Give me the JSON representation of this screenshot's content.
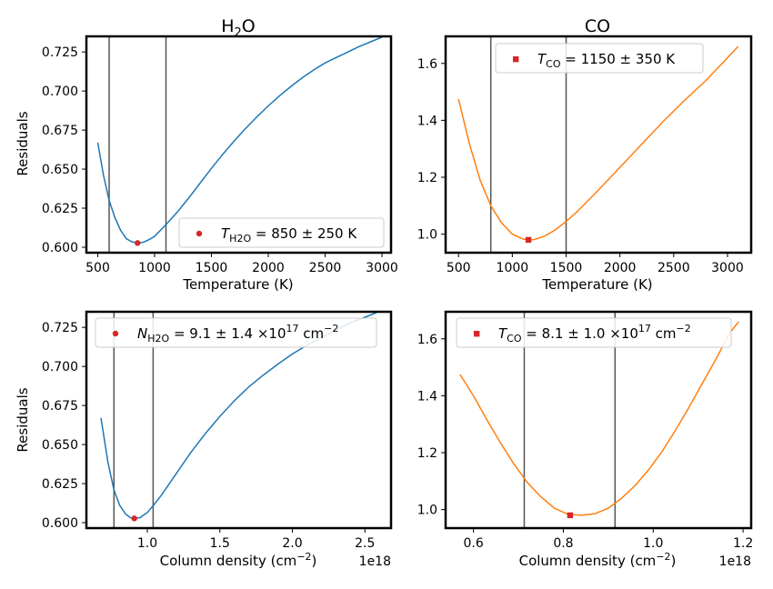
{
  "colors": {
    "blue": "#1f77b4",
    "orange": "#ff7f0e",
    "red": "#d62728",
    "vline": "#555555"
  },
  "chart_data": [
    {
      "id": "h2o-temp",
      "type": "line",
      "title_main": "H",
      "title_sub": "2",
      "title_tail": "O",
      "xlabel": "Temperature (K)",
      "ylabel": "Residuals",
      "xlim": [
        400,
        3080
      ],
      "ylim": [
        0.5965,
        0.735
      ],
      "xticks": [
        500,
        1000,
        1500,
        2000,
        2500,
        3000
      ],
      "xtick_labels": [
        "500",
        "1000",
        "1500",
        "2000",
        "2500",
        "3000"
      ],
      "yticks": [
        0.6,
        0.625,
        0.65,
        0.675,
        0.7,
        0.725
      ],
      "ytick_labels": [
        "0.600",
        "0.625",
        "0.650",
        "0.675",
        "0.700",
        "0.725"
      ],
      "series_color": "blue",
      "x": [
        500,
        550,
        600,
        650,
        700,
        750,
        800,
        850,
        900,
        950,
        1000,
        1100,
        1200,
        1300,
        1400,
        1500,
        1600,
        1700,
        1800,
        1900,
        2000,
        2100,
        2200,
        2300,
        2400,
        2500,
        2600,
        2700,
        2800,
        2900,
        3000
      ],
      "y": [
        0.667,
        0.646,
        0.63,
        0.619,
        0.611,
        0.6055,
        0.6035,
        0.6027,
        0.6032,
        0.6048,
        0.607,
        0.6145,
        0.6225,
        0.6315,
        0.641,
        0.6505,
        0.6595,
        0.668,
        0.676,
        0.6835,
        0.6905,
        0.697,
        0.703,
        0.7085,
        0.7135,
        0.718,
        0.7215,
        0.725,
        0.7285,
        0.7315,
        0.7345
      ],
      "vlines": [
        600,
        1100
      ],
      "marker": {
        "x": 850,
        "y": 0.6027,
        "shape": "circle"
      },
      "legend": {
        "position": "lower-right",
        "var": "T",
        "sub": "H2O",
        "text": " = 850 ± 250 K"
      }
    },
    {
      "id": "co-temp",
      "type": "line",
      "title_main": "CO",
      "title_sub": "",
      "title_tail": "",
      "xlabel": "Temperature (K)",
      "ylabel": "",
      "xlim": [
        380,
        3220
      ],
      "ylim": [
        0.935,
        1.695
      ],
      "xticks": [
        500,
        1000,
        1500,
        2000,
        2500,
        3000
      ],
      "xtick_labels": [
        "500",
        "1000",
        "1500",
        "2000",
        "2500",
        "3000"
      ],
      "yticks": [
        1.0,
        1.2,
        1.4,
        1.6
      ],
      "ytick_labels": [
        "1.0",
        "1.2",
        "1.4",
        "1.6"
      ],
      "series_color": "orange",
      "x": [
        500,
        600,
        700,
        800,
        900,
        1000,
        1100,
        1150,
        1200,
        1300,
        1400,
        1500,
        1600,
        1800,
        2000,
        2200,
        2400,
        2600,
        2800,
        3000,
        3100
      ],
      "y": [
        1.475,
        1.32,
        1.19,
        1.1,
        1.04,
        1.0,
        0.983,
        0.98,
        0.981,
        0.993,
        1.015,
        1.045,
        1.078,
        1.155,
        1.235,
        1.315,
        1.395,
        1.47,
        1.54,
        1.62,
        1.66
      ],
      "vlines": [
        800,
        1500
      ],
      "marker": {
        "x": 1150,
        "y": 0.98,
        "shape": "square"
      },
      "legend": {
        "position": "upper-center",
        "var": "T",
        "sub": "CO",
        "text": " = 1150 ± 350 K"
      }
    },
    {
      "id": "h2o-column",
      "type": "line",
      "title_main": "",
      "title_sub": "",
      "title_tail": "",
      "xlabel": "Column density (cm",
      "xlabel_sup": "−2",
      "xlabel_tail": ")",
      "ylabel": "Residuals",
      "offset_text": "1e18",
      "xlim": [
        0.58,
        2.68
      ],
      "ylim": [
        0.5965,
        0.735
      ],
      "xticks": [
        1.0,
        1.5,
        2.0,
        2.5
      ],
      "xtick_labels": [
        "1.0",
        "1.5",
        "2.0",
        "2.5"
      ],
      "yticks": [
        0.6,
        0.625,
        0.65,
        0.675,
        0.7,
        0.725
      ],
      "ytick_labels": [
        "0.600",
        "0.625",
        "0.650",
        "0.675",
        "0.700",
        "0.725"
      ],
      "series_color": "blue",
      "x": [
        0.68,
        0.73,
        0.77,
        0.81,
        0.85,
        0.88,
        0.91,
        0.95,
        1.0,
        1.05,
        1.1,
        1.2,
        1.3,
        1.4,
        1.5,
        1.6,
        1.7,
        1.8,
        1.9,
        2.0,
        2.1,
        2.2,
        2.3,
        2.4,
        2.5,
        2.58
      ],
      "y": [
        0.667,
        0.638,
        0.621,
        0.611,
        0.6055,
        0.6033,
        0.6027,
        0.6032,
        0.6065,
        0.612,
        0.618,
        0.6315,
        0.645,
        0.657,
        0.668,
        0.678,
        0.687,
        0.6945,
        0.7015,
        0.708,
        0.7135,
        0.7185,
        0.7235,
        0.728,
        0.7315,
        0.7345
      ],
      "vlines": [
        0.77,
        1.04
      ],
      "marker": {
        "x": 0.91,
        "y": 0.6027,
        "shape": "circle"
      },
      "legend": {
        "position": "upper-right",
        "var": "N",
        "sub": "H2O",
        "text": " = 9.1 ± 1.4 ×10",
        "sup": "17",
        "tail": " cm",
        "tail_sup": "−2"
      }
    },
    {
      "id": "co-column",
      "type": "line",
      "title_main": "",
      "title_sub": "",
      "title_tail": "",
      "xlabel": "Column density (cm",
      "xlabel_sup": "−2",
      "xlabel_tail": ")",
      "ylabel": "",
      "offset_text": "1e18",
      "xlim": [
        0.538,
        1.218
      ],
      "ylim": [
        0.935,
        1.695
      ],
      "xticks": [
        0.6,
        0.8,
        1.0,
        1.2
      ],
      "xtick_labels": [
        "0.6",
        "0.8",
        "1.0",
        "1.2"
      ],
      "yticks": [
        1.0,
        1.2,
        1.4,
        1.6
      ],
      "ytick_labels": [
        "1.0",
        "1.2",
        "1.4",
        "1.6"
      ],
      "series_color": "orange",
      "x": [
        0.57,
        0.6,
        0.63,
        0.66,
        0.69,
        0.72,
        0.75,
        0.78,
        0.81,
        0.84,
        0.87,
        0.9,
        0.93,
        0.96,
        0.99,
        1.02,
        1.05,
        1.08,
        1.11,
        1.14,
        1.17,
        1.19
      ],
      "y": [
        1.475,
        1.4,
        1.315,
        1.235,
        1.16,
        1.095,
        1.045,
        1.005,
        0.984,
        0.98,
        0.985,
        1.005,
        1.04,
        1.085,
        1.14,
        1.205,
        1.28,
        1.36,
        1.445,
        1.53,
        1.62,
        1.66
      ],
      "vlines": [
        0.713,
        0.915
      ],
      "marker": {
        "x": 0.815,
        "y": 0.98,
        "shape": "square"
      },
      "legend": {
        "position": "upper-center",
        "var": "T",
        "sub": "CO",
        "text": " = 8.1 ± 1.0 ×10",
        "sup": "17",
        "tail": " cm",
        "tail_sup": "−2"
      }
    }
  ]
}
